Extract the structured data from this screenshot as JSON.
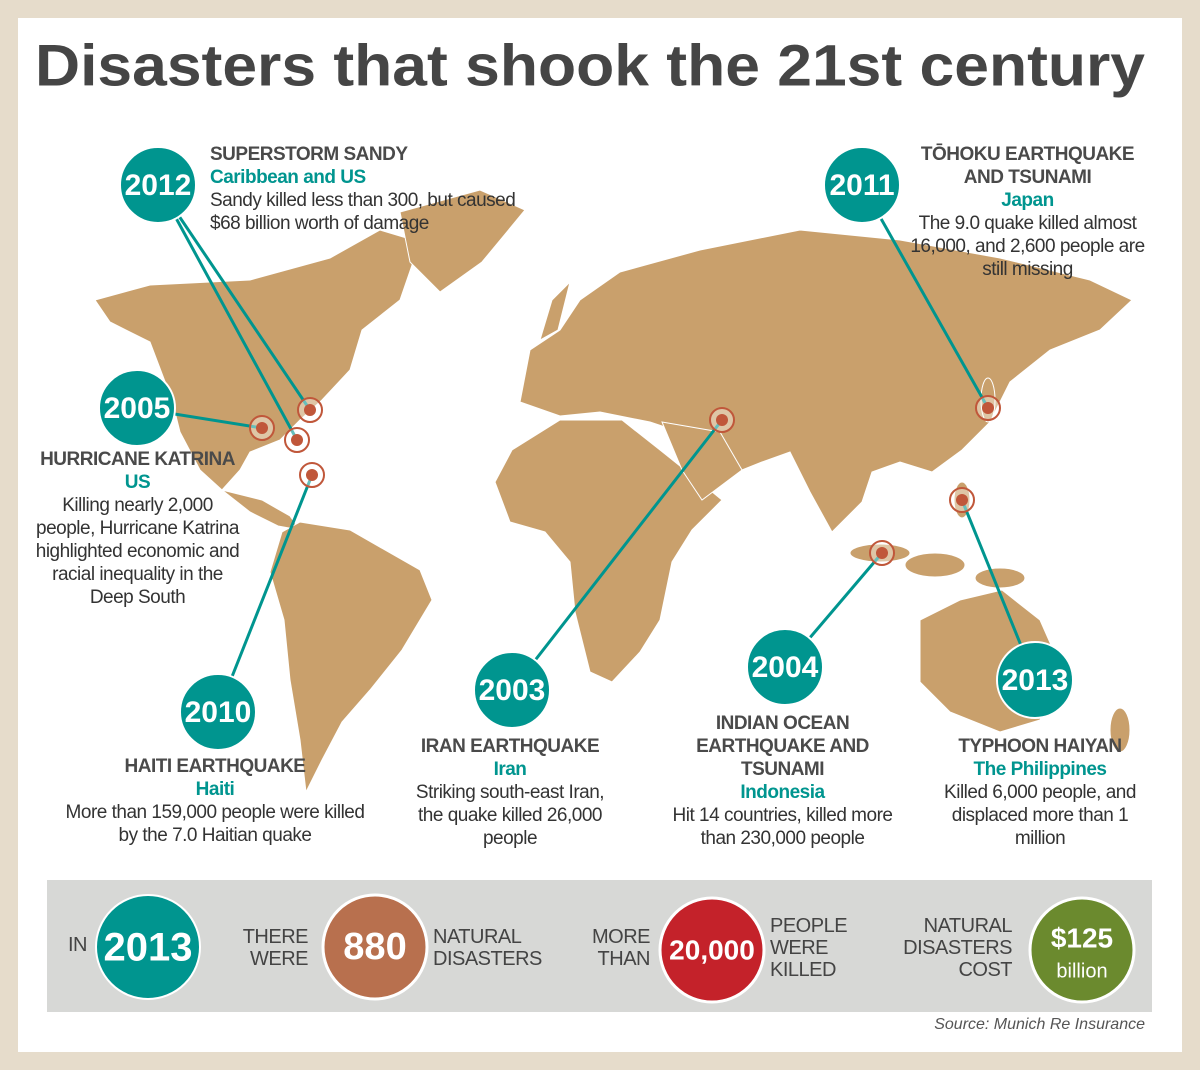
{
  "title": "Disasters that shook the 21st century",
  "events": [
    {
      "year": "2012",
      "name": "SUPERSTORM SANDY",
      "place": "Caribbean and US",
      "description": "Sandy killed less than 300, but caused $68 billion worth of damage"
    },
    {
      "year": "2011",
      "name": "TŌHOKU EARTHQUAKE AND TSUNAMI",
      "place": "Japan",
      "description": "The 9.0 quake killed almost 16,000, and 2,600 people are still missing"
    },
    {
      "year": "2005",
      "name": "HURRICANE KATRINA",
      "place": "US",
      "description": "Killing nearly 2,000 people, Hurricane Katrina highlighted economic and racial inequality in the Deep South"
    },
    {
      "year": "2010",
      "name": "HAITI EARTHQUAKE",
      "place": "Haiti",
      "description": "More than 159,000 people were killed by the 7.0 Haitian quake"
    },
    {
      "year": "2003",
      "name": "IRAN EARTHQUAKE",
      "place": "Iran",
      "description": "Striking south-east Iran, the quake killed 26,000 people"
    },
    {
      "year": "2004",
      "name": "INDIAN OCEAN EARTHQUAKE AND TSUNAMI",
      "place": "Indonesia",
      "description": "Hit 14 countries, killed more than 230,000 people"
    },
    {
      "year": "2013",
      "name": "TYPHOON HAIYAN",
      "place": "The Philippines",
      "description": "Killed 6,000 people, and displaced more than 1 million"
    }
  ],
  "stats": {
    "intro": "IN",
    "year": "2013",
    "items": [
      {
        "before": "THERE WERE",
        "figure": "880",
        "after": "NATURAL DISASTERS"
      },
      {
        "before": "MORE THAN",
        "figure": "20,000",
        "after": "PEOPLE WERE KILLED"
      },
      {
        "before": "NATURAL DISASTERS COST",
        "figure": "$125",
        "unit": "billion"
      }
    ]
  },
  "source": "Source: Munich Re Insurance"
}
